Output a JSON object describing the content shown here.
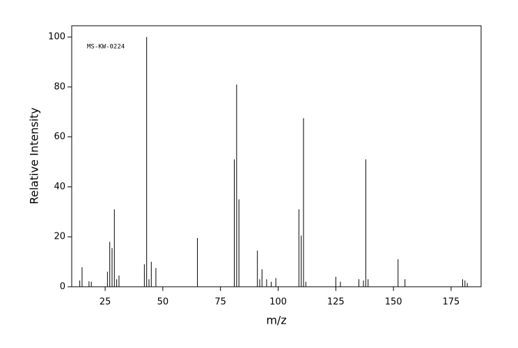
{
  "chart_data": {
    "type": "stem",
    "annotation": "MS-KW-0224",
    "xlabel": "m/z",
    "ylabel": "Relative Intensity",
    "x": [
      14,
      15,
      18,
      19,
      26,
      27,
      28,
      29,
      30,
      31,
      42,
      43,
      44,
      45,
      47,
      65,
      81,
      82,
      83,
      91,
      92,
      93,
      95,
      97,
      99,
      109,
      110,
      111,
      112,
      125,
      127,
      135,
      137,
      138,
      139,
      152,
      155,
      180,
      181,
      182
    ],
    "values": [
      2.5,
      7.8,
      2.2,
      2,
      6,
      18,
      15.5,
      31,
      3,
      4.5,
      9,
      100,
      3,
      10,
      7.5,
      19.5,
      51,
      81,
      35,
      14.5,
      3,
      7,
      3,
      2,
      3.5,
      31,
      20.5,
      67.5,
      2,
      4,
      2,
      3,
      2.5,
      51,
      3,
      11,
      3,
      3,
      2.5,
      1.5
    ],
    "color": "#000000",
    "xlim": [
      10.5,
      188
    ],
    "ylim": [
      0,
      104.5
    ],
    "xticks": [
      25,
      50,
      75,
      100,
      125,
      150,
      175
    ],
    "yticks": [
      0,
      20,
      40,
      60,
      80,
      100
    ]
  }
}
